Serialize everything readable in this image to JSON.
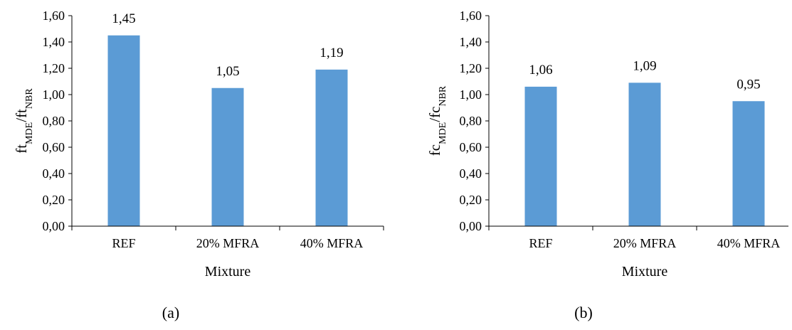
{
  "chart_data": [
    {
      "type": "bar",
      "panel_label": "(a)",
      "categories": [
        "REF",
        "20% MFRA",
        "40% MFRA"
      ],
      "values": [
        1.45,
        1.05,
        1.19
      ],
      "data_labels": [
        "1,45",
        "1,05",
        "1,19"
      ],
      "xlabel": "Mixture",
      "ylabel": {
        "base1": "ft",
        "sub1": "MDE",
        "sep": "/ft",
        "sub2": "NBR"
      },
      "ylim": [
        0,
        1.6
      ],
      "yticks": [
        0,
        0.2,
        0.4,
        0.6,
        0.8,
        1.0,
        1.2,
        1.4,
        1.6
      ],
      "ytick_labels": [
        "0,00",
        "0,20",
        "0,40",
        "0,60",
        "0,80",
        "1,00",
        "1,20",
        "1,40",
        "1,60"
      ],
      "grid": false,
      "bar_color": "#5b9bd5"
    },
    {
      "type": "bar",
      "panel_label": "(b)",
      "categories": [
        "REF",
        "20% MFRA",
        "40% MFRA"
      ],
      "values": [
        1.06,
        1.09,
        0.95
      ],
      "data_labels": [
        "1,06",
        "1,09",
        "0,95"
      ],
      "xlabel": "Mixture",
      "ylabel": {
        "base1": "fc",
        "sub1": "MDE",
        "sep": "/fc",
        "sub2": "NBR"
      },
      "ylim": [
        0,
        1.6
      ],
      "yticks": [
        0,
        0.2,
        0.4,
        0.6,
        0.8,
        1.0,
        1.2,
        1.4,
        1.6
      ],
      "ytick_labels": [
        "0,00",
        "0,20",
        "0,40",
        "0,60",
        "0,80",
        "1,00",
        "1,20",
        "1,40",
        "1,60"
      ],
      "grid": false,
      "bar_color": "#5b9bd5"
    }
  ]
}
